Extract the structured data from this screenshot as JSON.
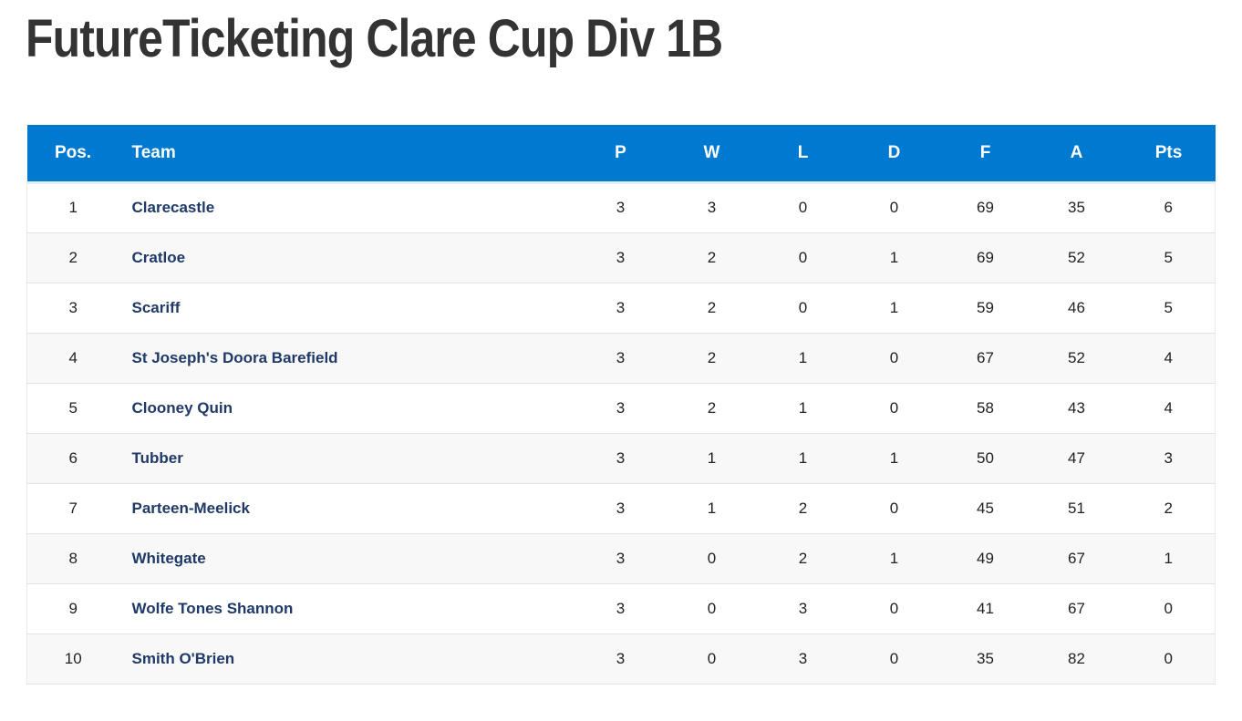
{
  "page": {
    "title": "FutureTicketing Clare Cup Div 1B"
  },
  "colors": {
    "header_bg": "#0079d0",
    "header_text": "#ffffff",
    "team_link": "#1f3a68",
    "row_alt_bg": "#f8f8f8",
    "title_text": "#333333"
  },
  "table": {
    "headers": {
      "pos": "Pos.",
      "team": "Team",
      "p": "P",
      "w": "W",
      "l": "L",
      "d": "D",
      "f": "F",
      "a": "A",
      "pts": "Pts"
    },
    "rows": [
      {
        "pos": "1",
        "team": "Clarecastle",
        "p": "3",
        "w": "3",
        "l": "0",
        "d": "0",
        "f": "69",
        "a": "35",
        "pts": "6"
      },
      {
        "pos": "2",
        "team": "Cratloe",
        "p": "3",
        "w": "2",
        "l": "0",
        "d": "1",
        "f": "69",
        "a": "52",
        "pts": "5"
      },
      {
        "pos": "3",
        "team": "Scariff",
        "p": "3",
        "w": "2",
        "l": "0",
        "d": "1",
        "f": "59",
        "a": "46",
        "pts": "5"
      },
      {
        "pos": "4",
        "team": "St Joseph's Doora Barefield",
        "p": "3",
        "w": "2",
        "l": "1",
        "d": "0",
        "f": "67",
        "a": "52",
        "pts": "4"
      },
      {
        "pos": "5",
        "team": "Clooney Quin",
        "p": "3",
        "w": "2",
        "l": "1",
        "d": "0",
        "f": "58",
        "a": "43",
        "pts": "4"
      },
      {
        "pos": "6",
        "team": "Tubber",
        "p": "3",
        "w": "1",
        "l": "1",
        "d": "1",
        "f": "50",
        "a": "47",
        "pts": "3"
      },
      {
        "pos": "7",
        "team": "Parteen-Meelick",
        "p": "3",
        "w": "1",
        "l": "2",
        "d": "0",
        "f": "45",
        "a": "51",
        "pts": "2"
      },
      {
        "pos": "8",
        "team": "Whitegate",
        "p": "3",
        "w": "0",
        "l": "2",
        "d": "1",
        "f": "49",
        "a": "67",
        "pts": "1"
      },
      {
        "pos": "9",
        "team": "Wolfe Tones Shannon",
        "p": "3",
        "w": "0",
        "l": "3",
        "d": "0",
        "f": "41",
        "a": "67",
        "pts": "0"
      },
      {
        "pos": "10",
        "team": "Smith O'Brien",
        "p": "3",
        "w": "0",
        "l": "3",
        "d": "0",
        "f": "35",
        "a": "82",
        "pts": "0"
      }
    ]
  }
}
